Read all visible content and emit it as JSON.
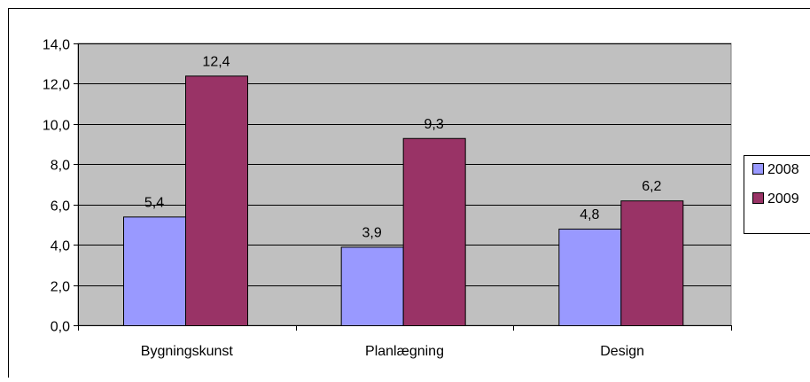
{
  "chart_data": {
    "type": "bar",
    "categories": [
      "Bygningskunst",
      "Planlægning",
      "Design"
    ],
    "series": [
      {
        "name": "2008",
        "values": [
          5.4,
          3.9,
          4.8
        ],
        "data_labels": [
          "5,4",
          "3,9",
          "4,8"
        ],
        "color": "#9999FF"
      },
      {
        "name": "2009",
        "values": [
          12.4,
          9.3,
          6.2
        ],
        "data_labels": [
          "12,4",
          "9,3",
          "6,2"
        ],
        "color": "#993366"
      }
    ],
    "ylim": [
      0,
      14
    ],
    "yticks": [
      0,
      2,
      4,
      6,
      8,
      10,
      12,
      14
    ],
    "ytick_labels": [
      "0,0",
      "2,0",
      "4,0",
      "6,0",
      "8,0",
      "10,0",
      "12,0",
      "14,0"
    ],
    "title": "",
    "xlabel": "",
    "ylabel": "",
    "grid": true,
    "legend_position": "right",
    "plot_background": "#C0C0C0",
    "grid_color": "#000000"
  }
}
